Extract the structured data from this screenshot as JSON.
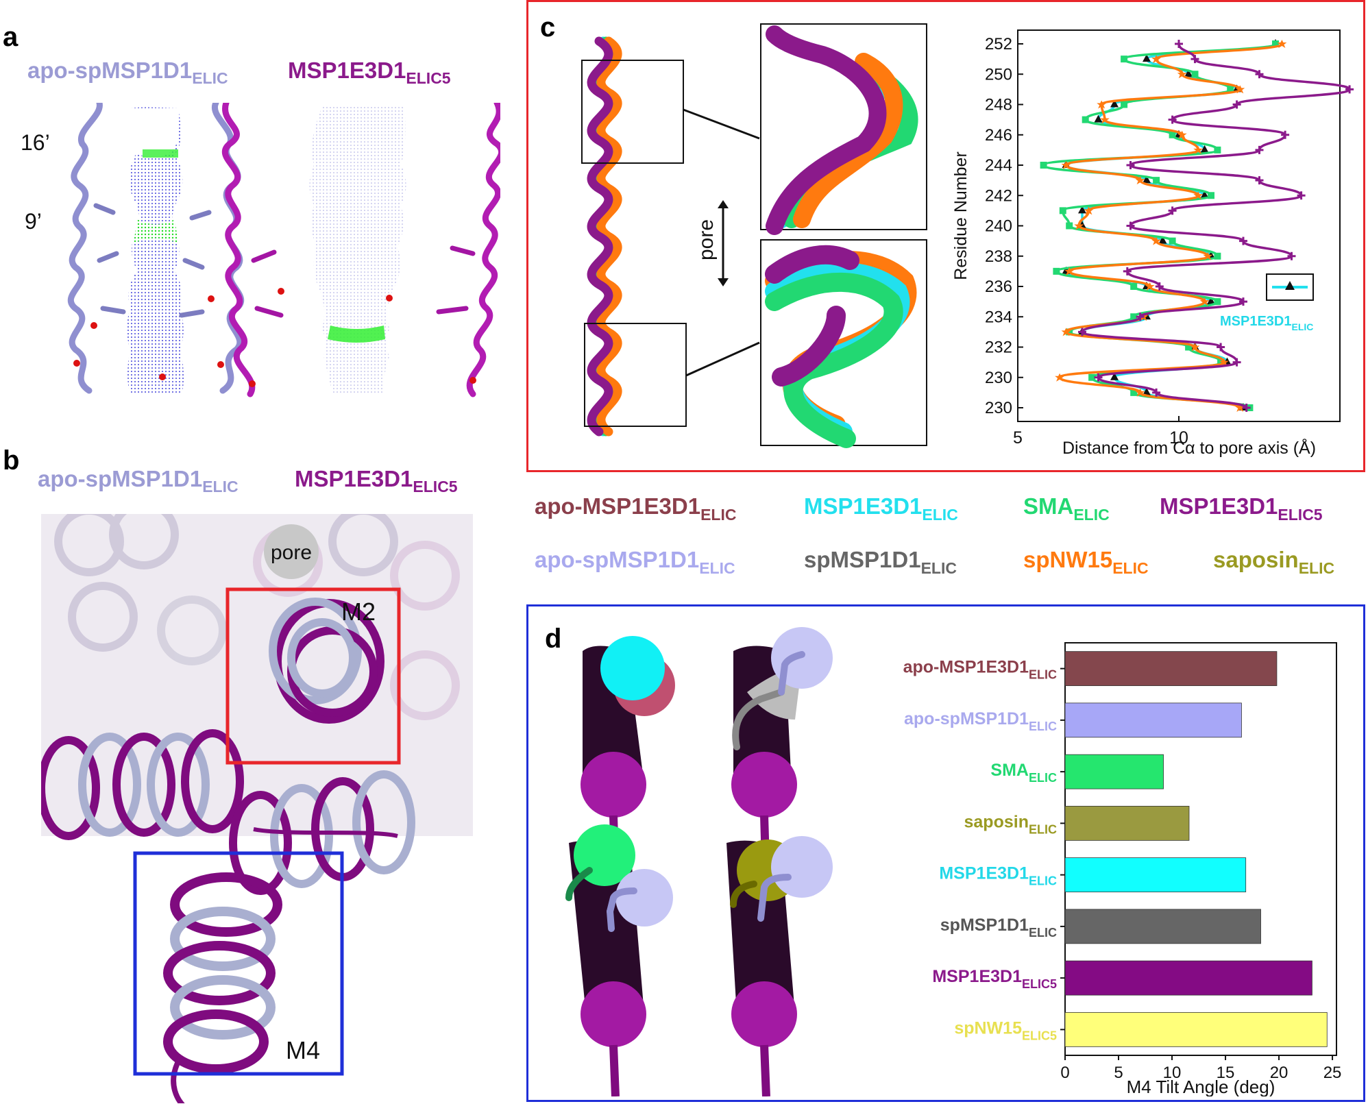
{
  "panels": {
    "a": {
      "letter": "a",
      "left_title": "apo-spMSP1D1",
      "left_title_sub": "ELIC",
      "right_title": "MSP1E3D1",
      "right_title_sub": "ELIC5",
      "label_16": "16’",
      "label_9": "9’"
    },
    "b": {
      "letter": "b",
      "left_title": "apo-spMSP1D1",
      "left_title_sub": "ELIC",
      "right_title": "MSP1E3D1",
      "right_title_sub": "ELIC5",
      "pore_label": "pore",
      "m2_label": "M2",
      "m4_label": "M4"
    },
    "c": {
      "letter": "c",
      "pore_label": "pore",
      "inset_legend": "MSP1E3D1",
      "inset_legend_sub": "ELIC"
    },
    "d": {
      "letter": "d"
    }
  },
  "legend": [
    {
      "name": "apo-MSP1E3D1",
      "sub": "ELIC",
      "color": "#8b3f4b"
    },
    {
      "name": "MSP1E3D1",
      "sub": "ELIC",
      "color": "#22e0ee"
    },
    {
      "name": "SMA",
      "sub": "ELIC",
      "color": "#22d872"
    },
    {
      "name": "MSP1E3D1",
      "sub": "ELIC5",
      "color": "#8b1a8b"
    },
    {
      "name": "apo-spMSP1D1",
      "sub": "ELIC",
      "color": "#a9a9ee"
    },
    {
      "name": "spMSP1D1",
      "sub": "ELIC",
      "color": "#666666"
    },
    {
      "name": "spNW15",
      "sub": "ELIC",
      "color": "#ff7a0f"
    },
    {
      "name": "saposin",
      "sub": "ELIC",
      "color": "#9a9a22"
    }
  ],
  "colors": {
    "apo_spMSP1D1": "#9b9bd4",
    "msp1e3d1_elic5": "#8b1a8b",
    "pore_dots": "#3a3ad8",
    "constriction": "#33ee33",
    "box_red": "#e8262b",
    "box_blue": "#1f2fd8"
  },
  "chart_data": [
    {
      "type": "line",
      "panel": "c",
      "xlabel": "Distance from Cα to pore axis (Å)",
      "ylabel": "Residue Number",
      "xlim": [
        5,
        15
      ],
      "xticks": [
        "5",
        "10"
      ],
      "yticks": [
        "230",
        "230",
        "232",
        "234",
        "236",
        "238",
        "240",
        "242",
        "244",
        "246",
        "248",
        "250",
        "252"
      ],
      "y": [
        252,
        251,
        250,
        249,
        248,
        247,
        246,
        245,
        244,
        243,
        242,
        241,
        240,
        239,
        238,
        237,
        236,
        235,
        234,
        233,
        232,
        231,
        230,
        229,
        228
      ],
      "series": [
        {
          "name": "MSP1E3D1",
          "color": "#22e0ee",
          "marker": "triangle",
          "values": [
            13,
            9.0,
            10.3,
            11.8,
            8.0,
            7.5,
            10.0,
            10.8,
            6.5,
            9.0,
            10.8,
            7.0,
            7.0,
            9.5,
            11.0,
            6.5,
            9.0,
            11.0,
            9.0,
            7.0,
            10.5,
            11.5,
            8.0,
            9.0,
            12.0
          ]
        },
        {
          "name": "SMA",
          "color": "#22d872",
          "marker": "square",
          "values": [
            13,
            8.3,
            10.5,
            11.6,
            8.3,
            7.1,
            9.8,
            11.2,
            5.8,
            9.3,
            11.0,
            6.4,
            6.6,
            9.8,
            11.2,
            6.2,
            8.6,
            11.2,
            8.6,
            6.6,
            10.3,
            11.3,
            7.3,
            8.6,
            12.2
          ]
        },
        {
          "name": "spNW15",
          "color": "#ff7a0f",
          "marker": "star",
          "values": [
            13.2,
            9.3,
            10.1,
            11.9,
            7.6,
            7.7,
            10.1,
            10.6,
            6.5,
            8.8,
            10.6,
            7.2,
            6.9,
            9.3,
            10.9,
            6.6,
            9.1,
            10.8,
            8.9,
            6.5,
            10.5,
            11.4,
            6.3,
            8.8,
            11.9
          ]
        },
        {
          "name": "MSP1E3D1",
          "sub": "ELIC5",
          "color": "#8b1a8b",
          "marker": "plus",
          "values": [
            10.0,
            10.5,
            12.5,
            15.3,
            11.8,
            9.8,
            13.3,
            12.5,
            8.5,
            12.5,
            13.8,
            9.8,
            8.5,
            12.0,
            13.5,
            8.4,
            9.4,
            12.0,
            8.8,
            7.0,
            11.3,
            11.8,
            7.5,
            9.3,
            12.1
          ]
        }
      ]
    },
    {
      "type": "bar",
      "panel": "d",
      "orientation": "horizontal",
      "xlabel": "M4 Tilt Angle (deg)",
      "xlim": [
        0,
        25
      ],
      "xticks": [
        "0",
        "5",
        "10",
        "15",
        "20",
        "25"
      ],
      "categories": [
        {
          "name": "apo-MSP1E3D1",
          "sub": "ELIC"
        },
        {
          "name": "apo-spMSP1D1",
          "sub": "ELIC"
        },
        {
          "name": "SMA",
          "sub": "ELIC"
        },
        {
          "name": "saposin",
          "sub": "ELIC"
        },
        {
          "name": "MSP1E3D1",
          "sub": "ELIC"
        },
        {
          "name": "spMSP1D1",
          "sub": "ELIC"
        },
        {
          "name": "MSP1E3D1",
          "sub": "ELIC5"
        },
        {
          "name": "spNW15",
          "sub": "ELIC5"
        }
      ],
      "values": [
        19.8,
        16.5,
        9.2,
        11.6,
        16.9,
        18.3,
        23.1,
        24.5
      ],
      "colors": [
        "#84474d",
        "#a7a7f7",
        "#25e66e",
        "#9a9a40",
        "#11ffff",
        "#666666",
        "#840b84",
        "#ffff7a"
      ],
      "label_colors": [
        "#8b3f4b",
        "#a9a9ee",
        "#22d872",
        "#9a9a22",
        "#22d8e8",
        "#555555",
        "#8b1a8b",
        "#e8e050"
      ]
    }
  ]
}
